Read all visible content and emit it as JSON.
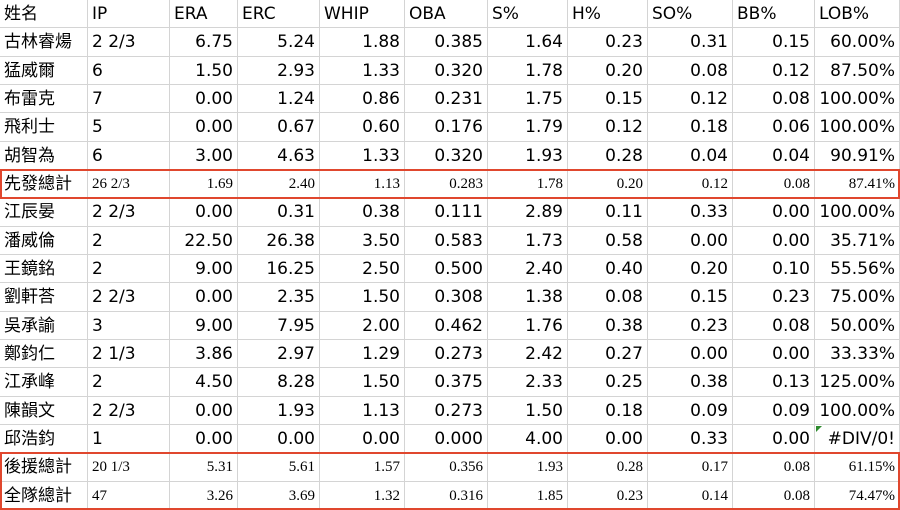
{
  "table": {
    "header": [
      "姓名",
      "IP",
      "ERA",
      "ERC",
      "WHIP",
      "OBA",
      "S%",
      "H%",
      "SO%",
      "BB%",
      "LOB%"
    ],
    "rows": [
      [
        "古林睿煬",
        "2 2/3",
        "6.75",
        "5.24",
        "1.88",
        "0.385",
        "1.64",
        "0.23",
        "0.31",
        "0.15",
        "60.00%"
      ],
      [
        "猛威爾",
        "6",
        "1.50",
        "2.93",
        "1.33",
        "0.320",
        "1.78",
        "0.20",
        "0.08",
        "0.12",
        "87.50%"
      ],
      [
        "布雷克",
        "7",
        "0.00",
        "1.24",
        "0.86",
        "0.231",
        "1.75",
        "0.15",
        "0.12",
        "0.08",
        "100.00%"
      ],
      [
        "飛利士",
        "5",
        "0.00",
        "0.67",
        "0.60",
        "0.176",
        "1.79",
        "0.12",
        "0.18",
        "0.06",
        "100.00%"
      ],
      [
        "胡智為",
        "6",
        "3.00",
        "4.63",
        "1.33",
        "0.320",
        "1.93",
        "0.28",
        "0.04",
        "0.04",
        "90.91%"
      ],
      [
        "先發總計",
        "26 2/3",
        "1.69",
        "2.40",
        "1.13",
        "0.283",
        "1.78",
        "0.20",
        "0.12",
        "0.08",
        "87.41%"
      ],
      [
        "江辰晏",
        "2 2/3",
        "0.00",
        "0.31",
        "0.38",
        "0.111",
        "2.89",
        "0.11",
        "0.33",
        "0.00",
        "100.00%"
      ],
      [
        "潘威倫",
        "2",
        "22.50",
        "26.38",
        "3.50",
        "0.583",
        "1.73",
        "0.58",
        "0.00",
        "0.00",
        "35.71%"
      ],
      [
        "王鏡銘",
        "2",
        "9.00",
        "16.25",
        "2.50",
        "0.500",
        "2.40",
        "0.40",
        "0.20",
        "0.10",
        "55.56%"
      ],
      [
        "劉軒荅",
        "2 2/3",
        "0.00",
        "2.35",
        "1.50",
        "0.308",
        "1.38",
        "0.08",
        "0.15",
        "0.23",
        "75.00%"
      ],
      [
        "吳承諭",
        "3",
        "9.00",
        "7.95",
        "2.00",
        "0.462",
        "1.76",
        "0.38",
        "0.23",
        "0.08",
        "50.00%"
      ],
      [
        "鄭鈞仁",
        "2 1/3",
        "3.86",
        "2.97",
        "1.29",
        "0.273",
        "2.42",
        "0.27",
        "0.00",
        "0.00",
        "33.33%"
      ],
      [
        "江承峰",
        "2",
        "4.50",
        "8.28",
        "1.50",
        "0.375",
        "2.33",
        "0.25",
        "0.38",
        "0.13",
        "125.00%"
      ],
      [
        "陳韻文",
        "2 2/3",
        "0.00",
        "1.93",
        "1.13",
        "0.273",
        "1.50",
        "0.18",
        "0.09",
        "0.09",
        "100.00%"
      ],
      [
        "邱浩鈞",
        "1",
        "0.00",
        "0.00",
        "0.00",
        "0.000",
        "4.00",
        "0.00",
        "0.33",
        "0.00",
        "#DIV/0!"
      ],
      [
        "後援總計",
        "20 1/3",
        "5.31",
        "5.61",
        "1.57",
        "0.356",
        "1.93",
        "0.28",
        "0.17",
        "0.08",
        "61.15%"
      ],
      [
        "全隊總計",
        "47",
        "3.26",
        "3.69",
        "1.32",
        "0.316",
        "1.85",
        "0.23",
        "0.14",
        "0.08",
        "74.47%"
      ]
    ]
  }
}
